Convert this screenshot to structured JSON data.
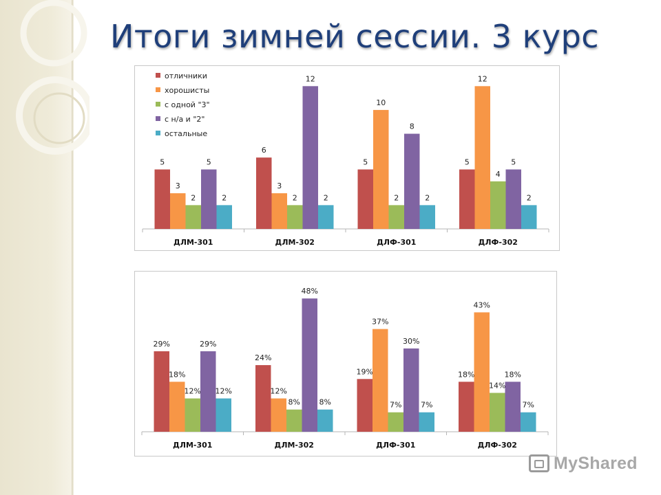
{
  "title": "Итоги зимней сессии. 3 курс",
  "watermark": "MyShared",
  "colors": {
    "title": "#1f3f7a",
    "series": [
      "#c0504d",
      "#f79646",
      "#9bbb59",
      "#8064a2",
      "#4bacc6"
    ]
  },
  "chart_data": [
    {
      "type": "bar",
      "categories": [
        "ДЛМ-301",
        "ДЛМ-302",
        "ДЛФ-301",
        "ДЛФ-302"
      ],
      "legend_position": "top-left",
      "ylim": [
        0,
        13
      ],
      "value_suffix": "",
      "series": [
        {
          "name": "отличники",
          "values": [
            5,
            6,
            5,
            5
          ]
        },
        {
          "name": "хорошисты",
          "values": [
            3,
            3,
            10,
            12
          ]
        },
        {
          "name": "с одной \"3\"",
          "values": [
            2,
            2,
            2,
            4
          ]
        },
        {
          "name": "с н/а и \"2\"",
          "values": [
            5,
            12,
            8,
            5
          ]
        },
        {
          "name": "остальные",
          "values": [
            2,
            2,
            2,
            2
          ]
        }
      ]
    },
    {
      "type": "bar",
      "categories": [
        "ДЛМ-301",
        "ДЛМ-302",
        "ДЛФ-301",
        "ДЛФ-302"
      ],
      "legend_position": "none",
      "ylim": [
        0,
        52
      ],
      "value_suffix": "%",
      "series": [
        {
          "name": "отличники",
          "values": [
            29,
            24,
            19,
            18
          ]
        },
        {
          "name": "хорошисты",
          "values": [
            18,
            12,
            37,
            43
          ]
        },
        {
          "name": "с одной \"3\"",
          "values": [
            12,
            8,
            7,
            14
          ]
        },
        {
          "name": "с н/а и \"2\"",
          "values": [
            29,
            48,
            30,
            18
          ]
        },
        {
          "name": "остальные",
          "values": [
            12,
            8,
            7,
            7
          ]
        }
      ]
    }
  ]
}
